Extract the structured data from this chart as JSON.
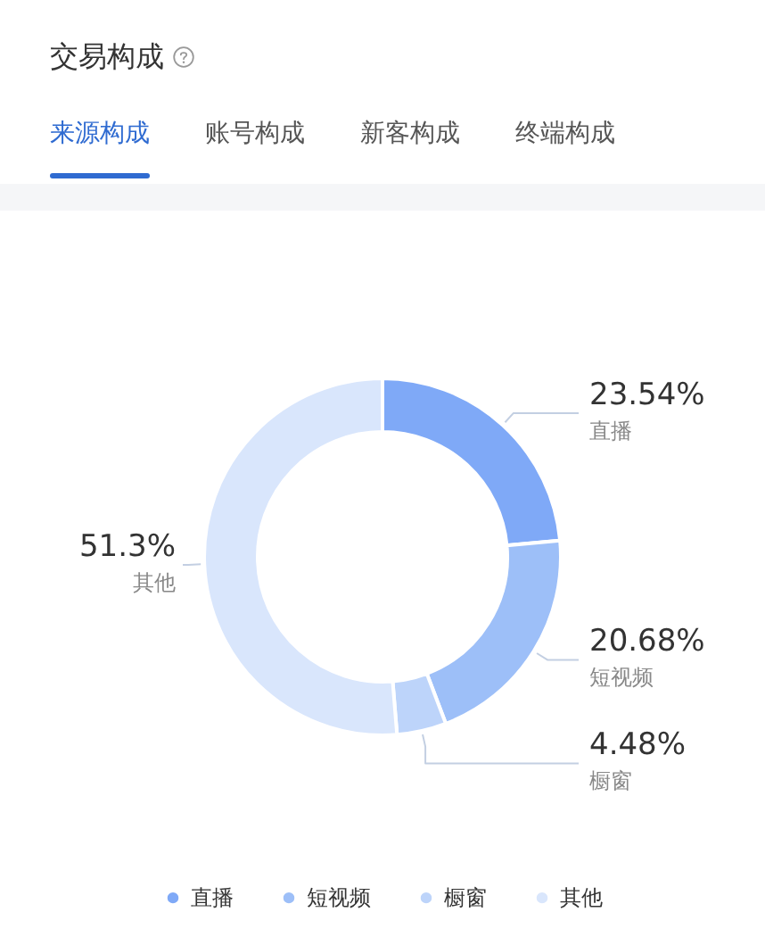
{
  "chart_data": {
    "type": "donut",
    "title": "交易构成",
    "annotations": [
      "来源构成",
      "账号构成",
      "新客构成",
      "终端构成"
    ],
    "categories": [
      "直播",
      "短视频",
      "橱窗",
      "其他"
    ],
    "values": [
      23.54,
      20.68,
      4.48,
      51.3
    ],
    "colors": [
      "#7fa9f7",
      "#9dbff8",
      "#bdd4fa",
      "#d9e6fc"
    ],
    "value_labels": [
      "23.54%",
      "20.68%",
      "4.48%",
      "51.3%"
    ],
    "legend": "bottom"
  }
}
